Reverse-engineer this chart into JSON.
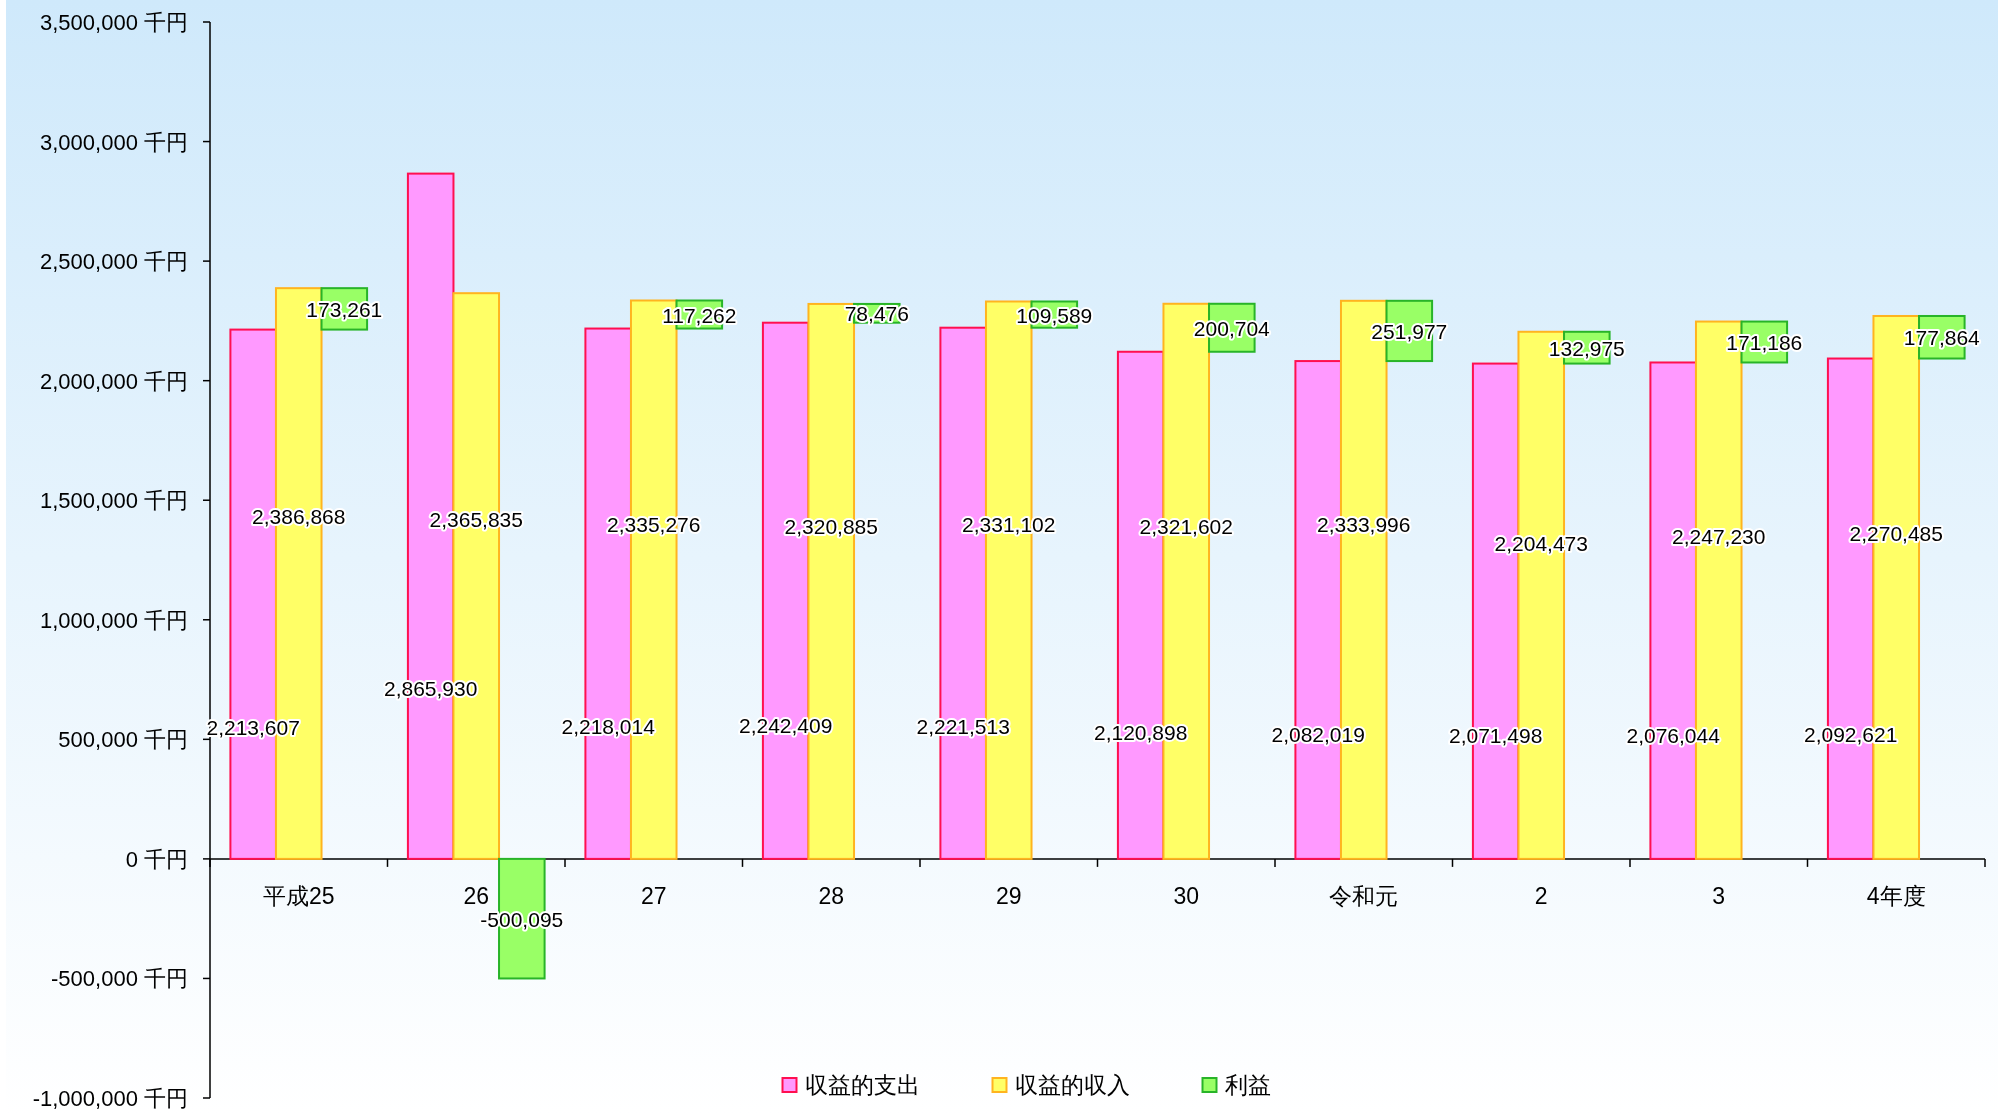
{
  "chart_data": {
    "type": "bar",
    "categories": [
      "平成25",
      "26",
      "27",
      "28",
      "29",
      "30",
      "令和元",
      "2",
      "3",
      "4年度"
    ],
    "series": [
      {
        "name": "収益的支出",
        "color": "#ff99ff",
        "values": [
          2213607,
          2865930,
          2218014,
          2242409,
          2221513,
          2120898,
          2082019,
          2071498,
          2076044,
          2092621
        ],
        "value_labels": [
          "2,213,607",
          "2,865,930",
          "2,218,014",
          "2,242,409",
          "2,221,513",
          "2,120,898",
          "2,082,019",
          "2,071,498",
          "2,076,044",
          "2,092,621"
        ]
      },
      {
        "name": "収益的収入",
        "color": "#ffff66",
        "values": [
          2386868,
          2365835,
          2335276,
          2320885,
          2331102,
          2321602,
          2333996,
          2204473,
          2247230,
          2270485
        ],
        "value_labels": [
          "2,386,868",
          "2,365,835",
          "2,335,276",
          "2,320,885",
          "2,331,102",
          "2,321,602",
          "2,333,996",
          "2,204,473",
          "2,247,230",
          "2,270,485"
        ]
      },
      {
        "name": "利益",
        "color": "#99ff66",
        "values": [
          173261,
          -500095,
          117262,
          78476,
          109589,
          200704,
          251977,
          132975,
          171186,
          177864
        ],
        "value_labels": [
          "173,261",
          "-500,095",
          "117,262",
          "78,476",
          "109,589",
          "200,704",
          "251,977",
          "132,975",
          "171,186",
          "177,864"
        ],
        "base": [
          2213607,
          0,
          2218014,
          2242409,
          2221513,
          2120898,
          2082019,
          2071498,
          2076044,
          2092621
        ]
      }
    ],
    "ylim": [
      -1000000,
      3500000
    ],
    "yticks": [
      {
        "value": -1000000,
        "label": "-1,000,000 千円"
      },
      {
        "value": -500000,
        "label": "-500,000 千円"
      },
      {
        "value": 0,
        "label": "0 千円"
      },
      {
        "value": 500000,
        "label": "500,000 千円"
      },
      {
        "value": 1000000,
        "label": "1,000,000 千円"
      },
      {
        "value": 1500000,
        "label": "1,500,000 千円"
      },
      {
        "value": 2000000,
        "label": "2,000,000 千円"
      },
      {
        "value": 2500000,
        "label": "2,500,000 千円"
      },
      {
        "value": 3000000,
        "label": "3,000,000 千円"
      },
      {
        "value": 3500000,
        "label": "3,500,000 千円"
      }
    ],
    "legend": "bottom"
  }
}
